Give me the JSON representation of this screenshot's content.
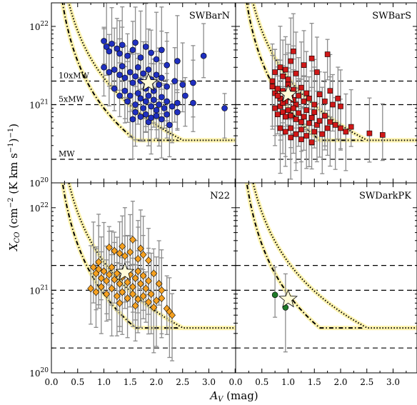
{
  "chart_data": {
    "type": "scatter",
    "layout": "2x2 grid of panels sharing axes",
    "xlabel": "A_V (mag)",
    "ylabel": "X_CO (cm^-2 (K km s^-1)^-1)",
    "xlim": [
      0.0,
      3.5
    ],
    "ylim": [
      1e+20,
      2e+22
    ],
    "yscale": "log",
    "grid": false,
    "x_tick_labels_left": [
      "0.0",
      "0.5",
      "1.0",
      "1.5",
      "2.0",
      "2.5",
      "3.0"
    ],
    "x_tick_labels_right": [
      "0.0",
      "0.5",
      "1.0",
      "1.5",
      "2.0",
      "2.5",
      "3.0"
    ],
    "x_tick_values": [
      0.0,
      0.5,
      1.0,
      1.5,
      2.0,
      2.5,
      3.0
    ],
    "y_ticks": [
      {
        "value": 1e+20,
        "base": "10",
        "exp": "20"
      },
      {
        "value": 1e+21,
        "base": "10",
        "exp": "21"
      },
      {
        "value": 1e+22,
        "base": "10",
        "exp": "22"
      }
    ],
    "reference_lines": [
      {
        "label": "10xMW",
        "value": 2e+21
      },
      {
        "label": "5xMW",
        "value": 1e+21
      },
      {
        "label": "MW",
        "value": 2e+20
      }
    ],
    "curves": [
      {
        "style": "dash-dot black",
        "k": 9e+20,
        "floor": 3.5e+20
      },
      {
        "style": "dotted black",
        "k": 2.2e+21,
        "floor": 3.5e+20
      }
    ],
    "panels": [
      {
        "title": "SWBarN",
        "marker": "circle",
        "color": "#1f2fbf",
        "star": {
          "x": 1.85,
          "y": 1.9e+21
        },
        "points": [
          [
            1.0,
            6.5e+21
          ],
          [
            1.05,
            5.5e+21
          ],
          [
            1.1,
            4.8e+21
          ],
          [
            1.15,
            6e+21
          ],
          [
            1.25,
            5.2e+21
          ],
          [
            1.3,
            4.5e+21
          ],
          [
            1.35,
            5.8e+21
          ],
          [
            1.45,
            4.2e+21
          ],
          [
            1.55,
            5e+21
          ],
          [
            1.6,
            6.2e+21
          ],
          [
            1.7,
            4e+21
          ],
          [
            1.8,
            5.5e+21
          ],
          [
            1.9,
            4.6e+21
          ],
          [
            2.0,
            3.8e+21
          ],
          [
            2.1,
            5e+21
          ],
          [
            2.2,
            3.2e+21
          ],
          [
            2.4,
            3.6e+21
          ],
          [
            2.9,
            4.2e+21
          ],
          [
            1.0,
            3e+21
          ],
          [
            1.1,
            2.6e+21
          ],
          [
            1.2,
            2.8e+21
          ],
          [
            1.3,
            2.4e+21
          ],
          [
            1.35,
            3.1e+21
          ],
          [
            1.4,
            2.2e+21
          ],
          [
            1.5,
            2.6e+21
          ],
          [
            1.55,
            1.9e+21
          ],
          [
            1.6,
            2.3e+21
          ],
          [
            1.65,
            3e+21
          ],
          [
            1.7,
            2e+21
          ],
          [
            1.75,
            2.5e+21
          ],
          [
            1.8,
            1.6e+21
          ],
          [
            1.85,
            2.8e+21
          ],
          [
            1.9,
            2.1e+21
          ],
          [
            1.95,
            1.5e+21
          ],
          [
            2.0,
            2.4e+21
          ],
          [
            2.05,
            1.8e+21
          ],
          [
            2.1,
            2.2e+21
          ],
          [
            2.2,
            1.7e+21
          ],
          [
            2.35,
            2e+21
          ],
          [
            2.5,
            1.8e+21
          ],
          [
            2.7,
            1.9e+21
          ],
          [
            1.2,
            1.6e+21
          ],
          [
            1.3,
            1.3e+21
          ],
          [
            1.4,
            1.5e+21
          ],
          [
            1.45,
            1.1e+21
          ],
          [
            1.5,
            1.3e+21
          ],
          [
            1.6,
            1e+21
          ],
          [
            1.65,
            1.4e+21
          ],
          [
            1.7,
            1.2e+21
          ],
          [
            1.75,
            9e+20
          ],
          [
            1.8,
            1.1e+21
          ],
          [
            1.85,
            1.3e+21
          ],
          [
            1.9,
            9.5e+20
          ],
          [
            1.95,
            1.15e+21
          ],
          [
            2.0,
            8.5e+20
          ],
          [
            2.05,
            1e+21
          ],
          [
            2.1,
            1.25e+21
          ],
          [
            2.15,
            9e+20
          ],
          [
            2.2,
            1.1e+21
          ],
          [
            2.3,
            9.5e+20
          ],
          [
            2.4,
            1.05e+21
          ],
          [
            2.55,
            1.3e+21
          ],
          [
            2.7,
            1.05e+21
          ],
          [
            3.3,
            9e+20
          ],
          [
            1.6,
            8e+20
          ],
          [
            1.7,
            7e+20
          ],
          [
            1.8,
            7.5e+20
          ],
          [
            1.85,
            6e+20
          ],
          [
            1.9,
            6.8e+20
          ],
          [
            2.0,
            7.2e+20
          ],
          [
            2.1,
            6.5e+20
          ],
          [
            2.2,
            7.5e+20
          ],
          [
            2.4,
            8e+20
          ],
          [
            1.55,
            6.5e+20
          ],
          [
            2.25,
            5.5e+20
          ]
        ]
      },
      {
        "title": "SWBarS",
        "marker": "square",
        "color": "#d01818",
        "star": {
          "x": 1.0,
          "y": 1.35e+21
        },
        "points": [
          [
            0.75,
            2.6e+21
          ],
          [
            0.85,
            3e+21
          ],
          [
            0.9,
            2.3e+21
          ],
          [
            0.95,
            2.8e+21
          ],
          [
            1.0,
            2.1e+21
          ],
          [
            1.05,
            3.6e+21
          ],
          [
            1.15,
            2.5e+21
          ],
          [
            1.3,
            3.2e+21
          ],
          [
            1.45,
            3.9e+21
          ],
          [
            1.55,
            2.6e+21
          ],
          [
            1.75,
            4.4e+21
          ],
          [
            0.7,
            2e+21
          ],
          [
            1.1,
            4.8e+21
          ],
          [
            0.7,
            1.7e+21
          ],
          [
            0.75,
            1.4e+21
          ],
          [
            0.8,
            1.6e+21
          ],
          [
            0.85,
            1.2e+21
          ],
          [
            0.9,
            1.5e+21
          ],
          [
            0.95,
            1.1e+21
          ],
          [
            1.0,
            1.8e+21
          ],
          [
            1.05,
            1.25e+21
          ],
          [
            1.1,
            1.55e+21
          ],
          [
            1.15,
            1e+21
          ],
          [
            1.2,
            1.3e+21
          ],
          [
            1.25,
            1.65e+21
          ],
          [
            1.3,
            1.1e+21
          ],
          [
            1.35,
            1.4e+21
          ],
          [
            1.4,
            1.2e+21
          ],
          [
            1.5,
            1e+21
          ],
          [
            1.6,
            1.35e+21
          ],
          [
            1.7,
            1.1e+21
          ],
          [
            1.8,
            1.5e+21
          ],
          [
            1.85,
            1e+21
          ],
          [
            1.95,
            1.2e+21
          ],
          [
            2.0,
            9.5e+20
          ],
          [
            0.75,
            9e+20
          ],
          [
            0.8,
            7.5e+20
          ],
          [
            0.85,
            9.5e+20
          ],
          [
            0.9,
            8e+20
          ],
          [
            0.95,
            7e+20
          ],
          [
            1.0,
            8.5e+20
          ],
          [
            1.05,
            7.2e+20
          ],
          [
            1.1,
            9e+20
          ],
          [
            1.15,
            6.5e+20
          ],
          [
            1.2,
            7.8e+20
          ],
          [
            1.25,
            6e+20
          ],
          [
            1.3,
            7e+20
          ],
          [
            1.35,
            8.5e+20
          ],
          [
            1.4,
            5.8e+20
          ],
          [
            1.45,
            6.8e+20
          ],
          [
            1.5,
            8e+20
          ],
          [
            1.55,
            5.5e+20
          ],
          [
            1.6,
            6.2e+20
          ],
          [
            1.7,
            7.2e+20
          ],
          [
            1.75,
            5e+20
          ],
          [
            1.8,
            6e+20
          ],
          [
            1.9,
            5.5e+20
          ],
          [
            2.0,
            5e+20
          ],
          [
            2.1,
            4.5e+20
          ],
          [
            2.2,
            5.2e+20
          ],
          [
            0.85,
            5e+20
          ],
          [
            0.95,
            4.5e+20
          ],
          [
            1.05,
            5e+20
          ],
          [
            1.15,
            4.2e+20
          ],
          [
            1.25,
            4.8e+20
          ],
          [
            1.35,
            4e+20
          ],
          [
            1.5,
            4.5e+20
          ],
          [
            1.65,
            4.2e+20
          ],
          [
            2.55,
            4.3e+20
          ],
          [
            2.8,
            4.1e+20
          ],
          [
            1.05,
            3.8e+20
          ],
          [
            1.25,
            3.6e+20
          ],
          [
            1.45,
            3.3e+20
          ],
          [
            0.9,
            1.05e+21
          ],
          [
            1.1,
            1.15e+21
          ],
          [
            0.8,
            1.3e+21
          ]
        ]
      },
      {
        "title": "N22",
        "marker": "diamond",
        "color": "#f5a020",
        "star": {
          "x": 1.4,
          "y": 1.65e+21
        },
        "points": [
          [
            1.1,
            3.3e+21
          ],
          [
            1.2,
            3e+21
          ],
          [
            1.3,
            2.8e+21
          ],
          [
            1.35,
            3.4e+21
          ],
          [
            1.4,
            2.6e+21
          ],
          [
            1.5,
            2.9e+21
          ],
          [
            1.55,
            4.1e+21
          ],
          [
            1.65,
            2.4e+21
          ],
          [
            1.7,
            3.2e+21
          ],
          [
            1.75,
            2.7e+21
          ],
          [
            1.85,
            2.3e+21
          ],
          [
            0.9,
            2.2e+21
          ],
          [
            0.8,
            1.9e+21
          ],
          [
            0.85,
            1.6e+21
          ],
          [
            0.9,
            1.8e+21
          ],
          [
            0.95,
            1.4e+21
          ],
          [
            1.0,
            1.7e+21
          ],
          [
            1.05,
            1.3e+21
          ],
          [
            1.1,
            1.55e+21
          ],
          [
            1.15,
            1.9e+21
          ],
          [
            1.2,
            1.35e+21
          ],
          [
            1.25,
            1.6e+21
          ],
          [
            1.3,
            1.2e+21
          ],
          [
            1.35,
            1.45e+21
          ],
          [
            1.4,
            1.8e+21
          ],
          [
            1.45,
            1.25e+21
          ],
          [
            1.5,
            1.55e+21
          ],
          [
            1.55,
            1.1e+21
          ],
          [
            1.6,
            1.4e+21
          ],
          [
            1.65,
            1.7e+21
          ],
          [
            1.7,
            1.2e+21
          ],
          [
            1.75,
            1.5e+21
          ],
          [
            1.8,
            1.05e+21
          ],
          [
            1.85,
            1.3e+21
          ],
          [
            1.95,
            1.6e+21
          ],
          [
            2.05,
            1.2e+21
          ],
          [
            0.75,
            1.05e+21
          ],
          [
            0.85,
            9.5e+20
          ],
          [
            0.95,
            1.1e+21
          ],
          [
            1.05,
            9e+20
          ],
          [
            1.15,
            1.05e+21
          ],
          [
            1.25,
            8.5e+20
          ],
          [
            1.35,
            9.5e+20
          ],
          [
            1.45,
            8e+20
          ],
          [
            1.55,
            9e+20
          ],
          [
            1.65,
            7.8e+20
          ],
          [
            1.75,
            8.5e+20
          ],
          [
            1.85,
            7.2e+20
          ],
          [
            1.9,
            9e+20
          ],
          [
            2.0,
            7.5e+20
          ],
          [
            2.1,
            8e+20
          ],
          [
            2.2,
            6e+20
          ],
          [
            2.25,
            5.5e+20
          ],
          [
            2.3,
            5e+20
          ],
          [
            1.95,
            6.2e+20
          ],
          [
            1.6,
            6.5e+20
          ],
          [
            1.3,
            7e+20
          ],
          [
            2.1,
            1e+21
          ]
        ]
      },
      {
        "title": "SWDarkPK",
        "marker": "circle",
        "color": "#1e7a28",
        "star": {
          "x": 1.0,
          "y": 7.8e+20
        },
        "points": [
          [
            0.75,
            8.8e+20
          ],
          [
            0.95,
            6.2e+20
          ]
        ]
      }
    ]
  }
}
